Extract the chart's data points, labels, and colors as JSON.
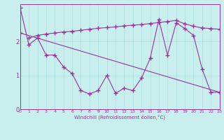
{
  "xlabel": "Windchill (Refroidissement éolien,°C)",
  "bg_color": "#c8eeee",
  "line_color": "#993399",
  "grid_color": "#aadddd",
  "xlim": [
    0,
    23
  ],
  "ylim": [
    0,
    3.1
  ],
  "yticks": [
    0,
    1,
    2
  ],
  "xticks": [
    0,
    1,
    2,
    3,
    4,
    5,
    6,
    7,
    8,
    9,
    10,
    11,
    12,
    13,
    14,
    15,
    16,
    17,
    18,
    19,
    20,
    21,
    22,
    23
  ],
  "line1_x": [
    0,
    1,
    2,
    3,
    4,
    5,
    6,
    7,
    8,
    9,
    10,
    11,
    12,
    13,
    14,
    15,
    16,
    17,
    18,
    19,
    20,
    21,
    22,
    23
  ],
  "line1_y": [
    3.0,
    1.9,
    2.1,
    1.6,
    1.6,
    1.25,
    1.05,
    0.55,
    0.45,
    0.55,
    1.0,
    0.47,
    0.62,
    0.55,
    0.92,
    1.5,
    2.65,
    1.6,
    2.55,
    2.38,
    2.18,
    1.18,
    0.5,
    0.5
  ],
  "line2_x": [
    1,
    2,
    3,
    4,
    5,
    6,
    7,
    8,
    9,
    10,
    11,
    12,
    13,
    14,
    15,
    16,
    17,
    18,
    19,
    20,
    21,
    22,
    23
  ],
  "line2_y": [
    2.1,
    2.18,
    2.22,
    2.25,
    2.28,
    2.3,
    2.33,
    2.36,
    2.39,
    2.41,
    2.43,
    2.46,
    2.48,
    2.5,
    2.53,
    2.56,
    2.59,
    2.62,
    2.52,
    2.45,
    2.4,
    2.38,
    2.36
  ],
  "line3_x": [
    0,
    23
  ],
  "line3_y": [
    2.25,
    0.5
  ]
}
